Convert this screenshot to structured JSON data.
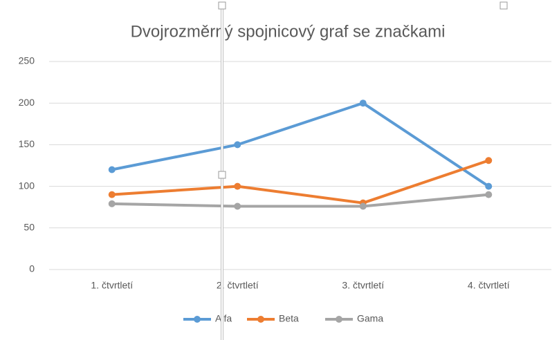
{
  "chart_data": {
    "type": "line",
    "title": "Dvojrozměrný spojnicový graf se značkami",
    "categories": [
      "1. čtvrtletí",
      "2. čtvrtletí",
      "3. čtvrtletí",
      "4. čtvrtletí"
    ],
    "series": [
      {
        "name": "Alfa",
        "color": "#5b9bd5",
        "values": [
          120,
          150,
          200,
          100
        ]
      },
      {
        "name": "Beta",
        "color": "#ed7d31",
        "values": [
          90,
          100,
          80,
          131
        ]
      },
      {
        "name": "Gama",
        "color": "#a5a5a5",
        "values": [
          79,
          76,
          76,
          90
        ]
      }
    ],
    "ylim": [
      0,
      250
    ],
    "yticks": [
      0,
      50,
      100,
      150,
      200,
      250
    ],
    "grid": true,
    "legend": "bottom"
  }
}
